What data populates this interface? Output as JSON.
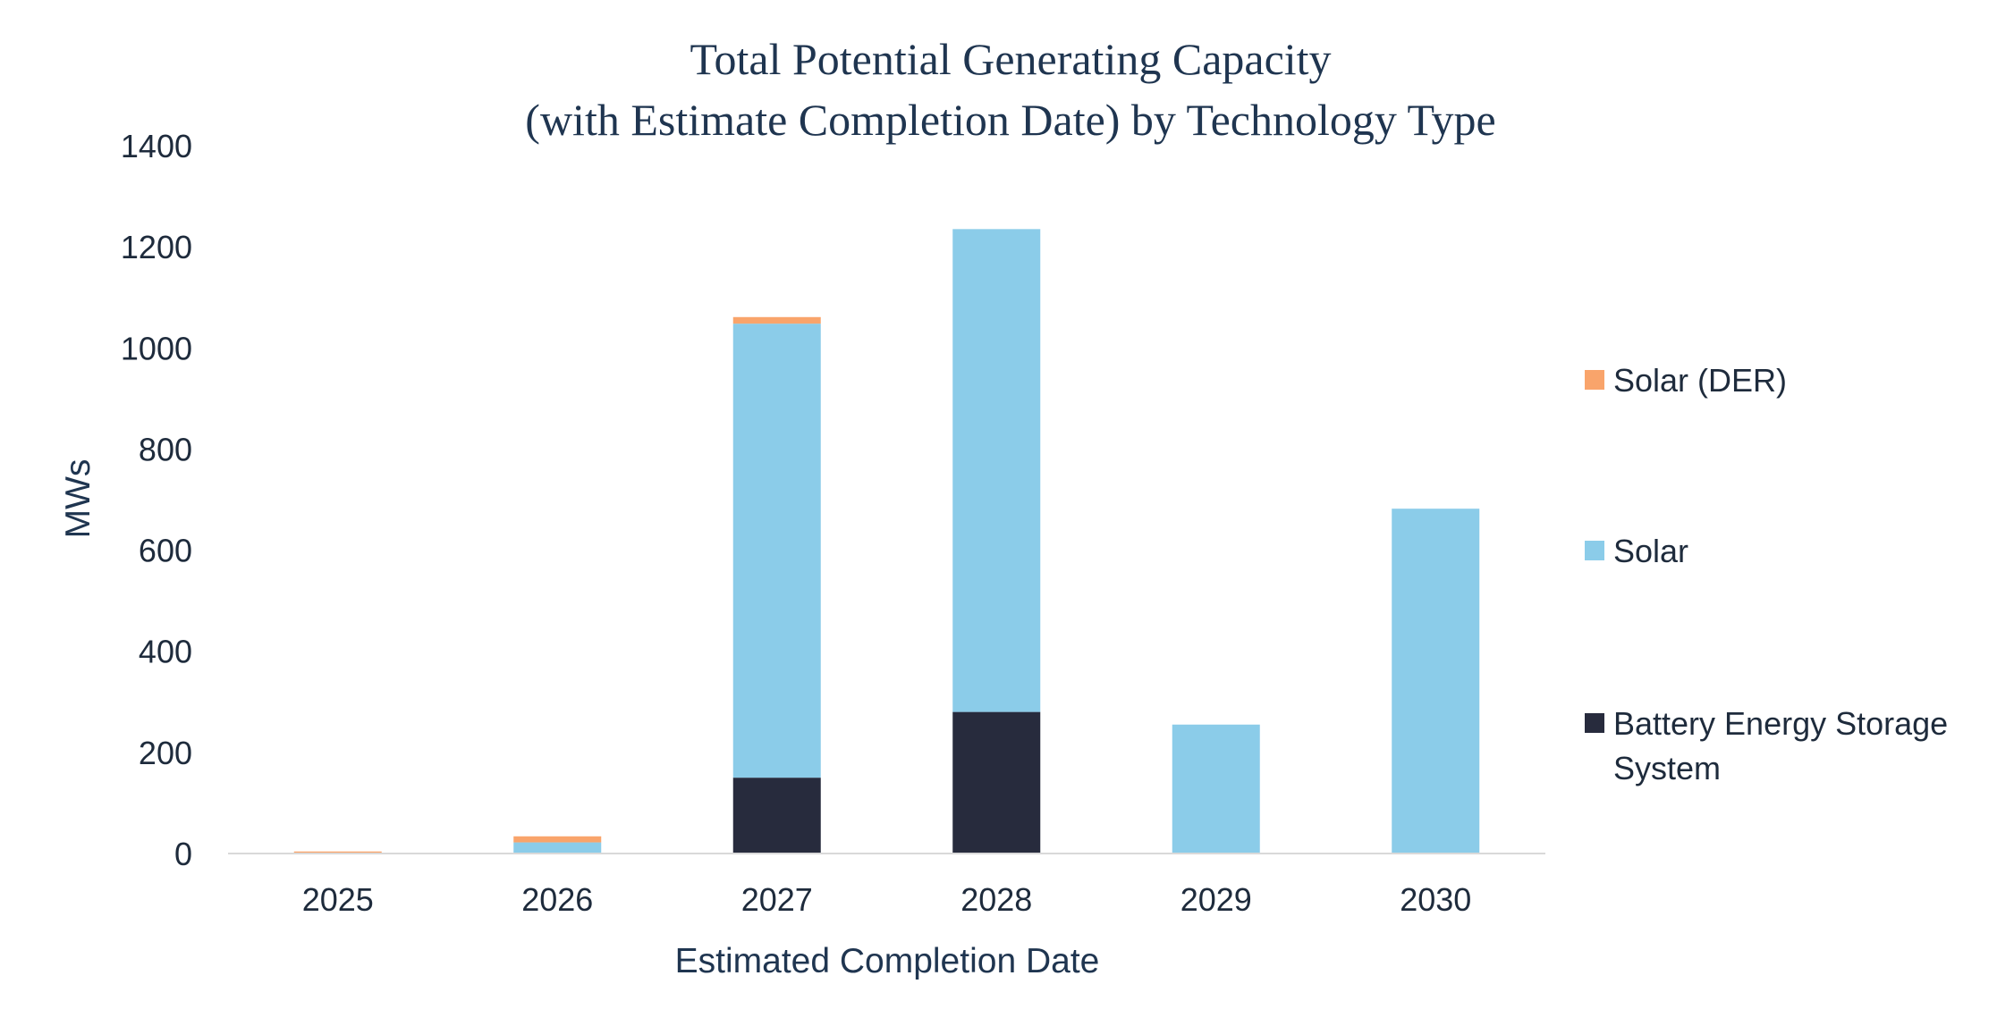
{
  "chart_data": {
    "type": "bar",
    "stacked": true,
    "title": [
      "Total Potential Generating Capacity",
      "(with Estimate Completion Date) by Technology Type"
    ],
    "xlabel": "Estimated Completion Date",
    "ylabel": "MWs",
    "categories": [
      "2025",
      "2026",
      "2027",
      "2028",
      "2029",
      "2030"
    ],
    "ylim": [
      0,
      1400
    ],
    "yticks": [
      "0",
      "200",
      "400",
      "600",
      "800",
      "1000",
      "1200",
      "1400"
    ],
    "grid": false,
    "legend_position": "right",
    "series": [
      {
        "name": "Battery Energy Storage System",
        "legend_lines": [
          "Battery Energy Storage",
          "System"
        ],
        "color": "#272b3d",
        "values": [
          0,
          0,
          150,
          280,
          0,
          0
        ]
      },
      {
        "name": "Solar",
        "legend_lines": [
          "Solar"
        ],
        "color": "#8bcce9",
        "values": [
          0,
          22,
          898,
          955,
          255,
          682
        ]
      },
      {
        "name": "Solar (DER)",
        "legend_lines": [
          "Solar (DER)"
        ],
        "color": "#f9a46b",
        "values": [
          4,
          12,
          13,
          0,
          0,
          0
        ]
      }
    ],
    "axis_color": "#d9d9d9"
  }
}
